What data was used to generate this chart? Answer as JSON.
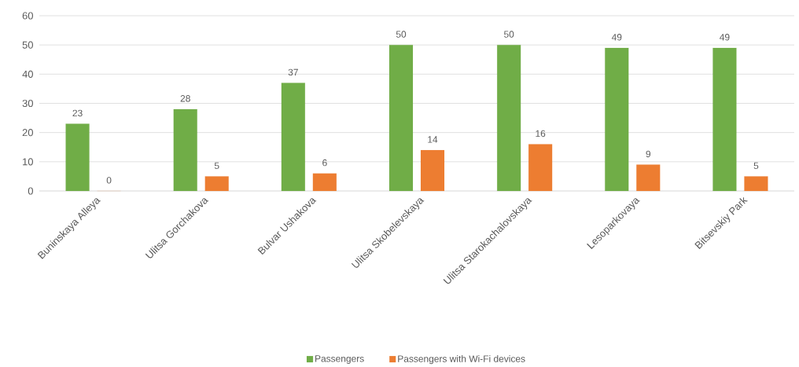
{
  "chart_data": {
    "type": "bar",
    "categories": [
      "Buninskaya Alleya",
      "Ulitsa Gorchakova",
      "Bulvar Ushakova",
      "Ulitsa Skobelevskaya",
      "Ulitsa Starokachalovskaya",
      "Lesoparkovaya",
      "Bitsevskiy  Park"
    ],
    "series": [
      {
        "name": "Passengers",
        "color": "#70ad47",
        "values": [
          23,
          28,
          37,
          50,
          50,
          49,
          49
        ]
      },
      {
        "name": "Passengers with Wi-Fi devices",
        "color": "#ed7d31",
        "values": [
          0,
          5,
          6,
          14,
          16,
          9,
          5
        ]
      }
    ],
    "ylim": [
      0,
      60
    ],
    "yticks": [
      0,
      10,
      20,
      30,
      40,
      50,
      60
    ],
    "grid": "y",
    "legend": "bottom",
    "data_labels": true
  }
}
